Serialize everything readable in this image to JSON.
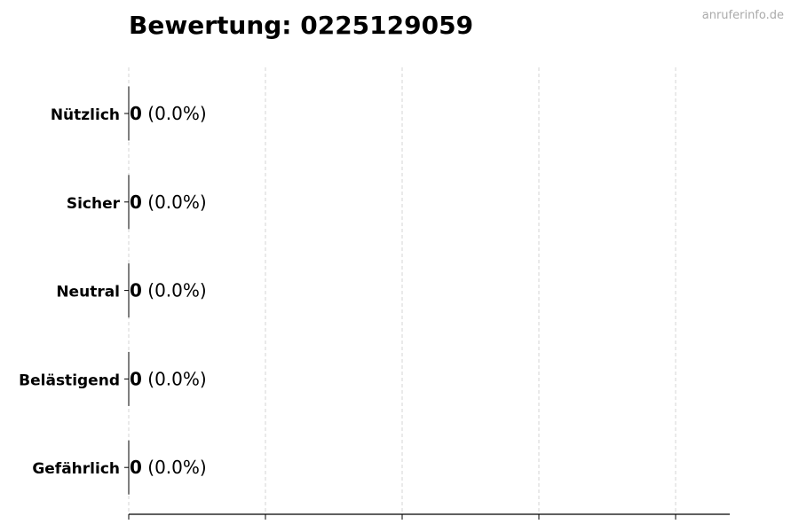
{
  "chart_data": {
    "type": "bar",
    "orientation": "horizontal",
    "title": "Bewertung: 0225129059",
    "watermark": "anruferinfo.de",
    "categories": [
      "Nützlich",
      "Sicher",
      "Neutral",
      "Belästigend",
      "Gefährlich"
    ],
    "values": [
      0,
      0,
      0,
      0,
      0
    ],
    "data_labels": [
      {
        "count": "0",
        "percent": "(0.0%)"
      },
      {
        "count": "0",
        "percent": "(0.0%)"
      },
      {
        "count": "0",
        "percent": "(0.0%)"
      },
      {
        "count": "0",
        "percent": "(0.0%)"
      },
      {
        "count": "0",
        "percent": "(0.0%)"
      }
    ],
    "xlabel": "",
    "ylabel": "",
    "x_tick_labels": "none",
    "grid": "vertical dashed",
    "legend": "none",
    "colors": {
      "bar_edge": "#000000",
      "grid": "#cccccc",
      "text": "#000000"
    }
  }
}
